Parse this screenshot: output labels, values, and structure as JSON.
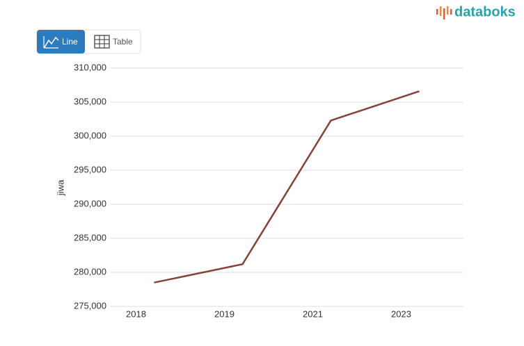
{
  "ui": {
    "logo": "databoks",
    "buttons": [
      "Line",
      "Table"
    ]
  },
  "chart_data": {
    "type": "line",
    "ylabel": "jiwa",
    "categories": [
      "2018",
      "2019",
      "2021",
      "2023"
    ],
    "values": [
      278500,
      281200,
      302300,
      306600
    ],
    "color": "#844339",
    "ylim": [
      275000,
      310000
    ],
    "yticks": [
      {
        "value": 275000,
        "label": "275,000"
      },
      {
        "value": 280000,
        "label": "280,000"
      },
      {
        "value": 285000,
        "label": "285,000"
      },
      {
        "value": 290000,
        "label": "290,000"
      },
      {
        "value": 295000,
        "label": "295,000"
      },
      {
        "value": 300000,
        "label": "300,000"
      },
      {
        "value": 305000,
        "label": "305,000"
      },
      {
        "value": 310000,
        "label": "310,000"
      }
    ],
    "grid": true
  }
}
